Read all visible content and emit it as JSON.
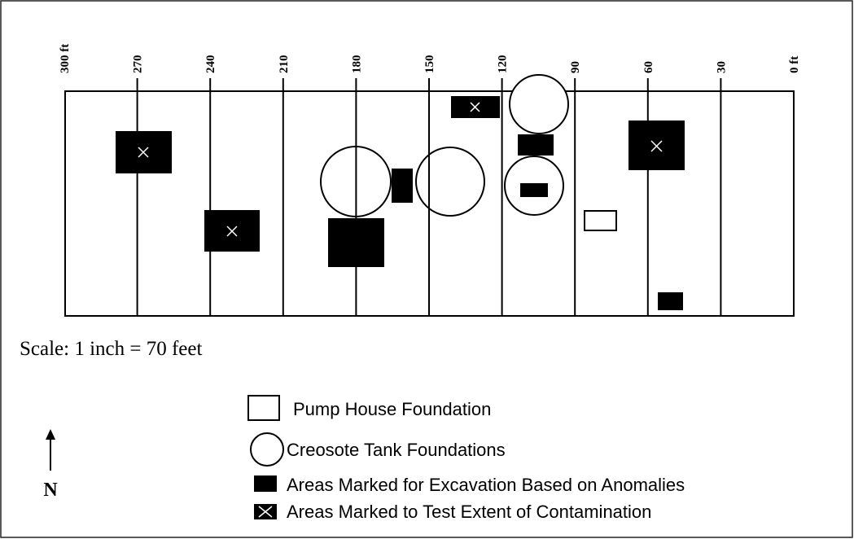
{
  "axis_labels": [
    "300 ft",
    "270",
    "240",
    "210",
    "180",
    "150",
    "120",
    "90",
    "60",
    "30",
    "0 ft"
  ],
  "scale": "Scale: 1 inch  = 70 feet",
  "north": "N",
  "legend": [
    "Pump House Foundation",
    "Creosote Tank Foundations",
    "Areas Marked for Excavation Based on Anomalies",
    "Areas Marked to Test Extent of Contamination"
  ]
}
